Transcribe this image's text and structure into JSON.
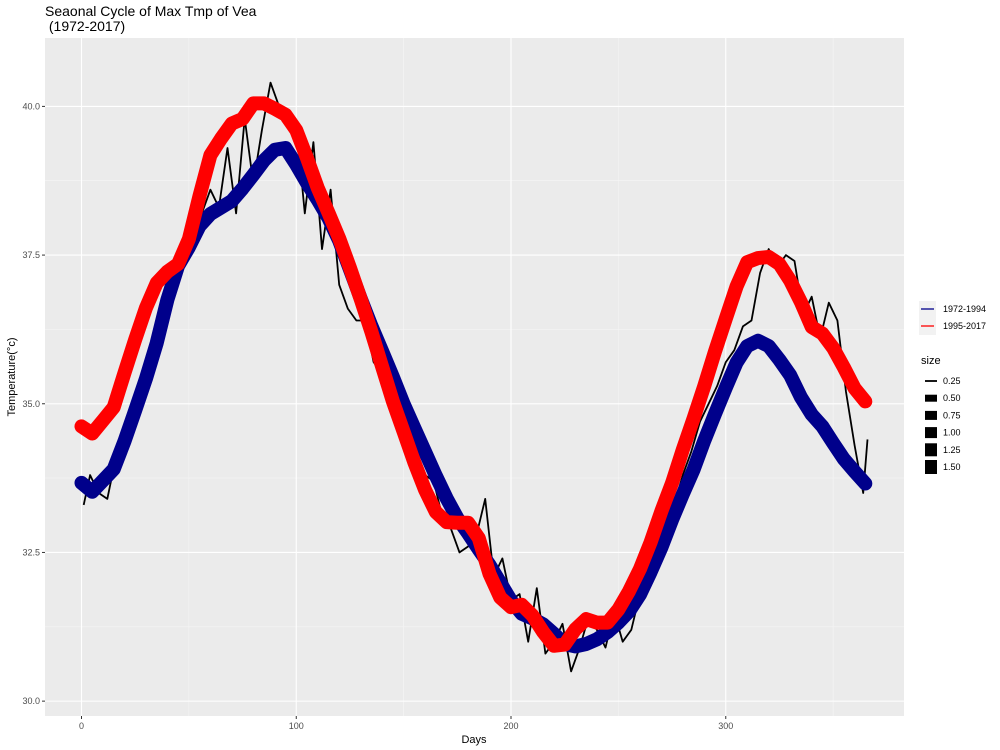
{
  "title_line1": "Seaonal Cycle of Max Tmp of Vea",
  "title_line2": " (1972-2017)",
  "chart_data": {
    "type": "line",
    "title": "Seaonal Cycle of Max Tmp of Vea\n (1972-2017)",
    "xlabel": "Days",
    "ylabel": "Temperature(°c)",
    "xlim": [
      -17,
      383
    ],
    "ylim": [
      29.75,
      41.15
    ],
    "x_ticks": [
      0,
      100,
      200,
      300
    ],
    "y_ticks": [
      30.0,
      32.5,
      35.0,
      37.5,
      40.0
    ],
    "y_tick_labels": [
      "30.0",
      "32.5",
      "35.0",
      "37.5",
      "40.0"
    ],
    "grid": true,
    "legend_placement": "right",
    "raw_daily": {
      "name": "",
      "color": "#000000",
      "x": [
        1,
        4,
        8,
        12,
        16,
        20,
        24,
        28,
        32,
        36,
        40,
        44,
        48,
        52,
        56,
        60,
        64,
        68,
        72,
        76,
        80,
        84,
        88,
        92,
        96,
        100,
        104,
        108,
        112,
        116,
        120,
        124,
        128,
        132,
        136,
        140,
        144,
        148,
        152,
        156,
        160,
        164,
        168,
        172,
        176,
        180,
        184,
        188,
        192,
        196,
        200,
        204,
        208,
        212,
        216,
        220,
        224,
        228,
        232,
        236,
        240,
        244,
        248,
        252,
        256,
        260,
        264,
        268,
        272,
        276,
        280,
        284,
        288,
        292,
        296,
        300,
        304,
        308,
        312,
        316,
        320,
        324,
        328,
        332,
        336,
        340,
        344,
        348,
        352,
        356,
        360,
        364,
        366
      ],
      "y": [
        33.3,
        33.8,
        33.5,
        33.4,
        34.1,
        34.3,
        34.9,
        35.3,
        35.8,
        36.2,
        36.7,
        37.0,
        37.5,
        38.0,
        38.2,
        38.6,
        38.3,
        39.3,
        38.2,
        39.8,
        38.7,
        39.6,
        40.4,
        40.0,
        39.7,
        39.7,
        38.2,
        39.4,
        37.6,
        38.6,
        37.0,
        36.6,
        36.4,
        36.4,
        35.7,
        35.5,
        35.4,
        34.9,
        34.6,
        34.2,
        33.8,
        33.7,
        33.1,
        32.9,
        32.5,
        32.6,
        32.8,
        33.4,
        32.1,
        32.4,
        31.7,
        31.8,
        31.0,
        31.9,
        30.8,
        31.0,
        31.3,
        30.5,
        30.9,
        31.4,
        31.2,
        30.9,
        31.5,
        31.0,
        31.2,
        31.8,
        32.2,
        32.6,
        32.9,
        33.3,
        33.8,
        34.2,
        34.7,
        35.0,
        35.3,
        35.7,
        35.9,
        36.3,
        36.4,
        37.2,
        37.6,
        37.3,
        37.5,
        37.4,
        36.5,
        36.8,
        36.1,
        36.7,
        36.4,
        35.2,
        34.3,
        33.5,
        34.4
      ]
    },
    "series": [
      {
        "name": "1972-1994",
        "color": "#00008b",
        "x": [
          0,
          5,
          10,
          15,
          20,
          25,
          30,
          35,
          40,
          45,
          50,
          55,
          60,
          65,
          70,
          75,
          80,
          85,
          90,
          95,
          100,
          105,
          110,
          115,
          120,
          125,
          130,
          135,
          140,
          145,
          150,
          155,
          160,
          165,
          170,
          175,
          180,
          185,
          190,
          195,
          200,
          205,
          210,
          215,
          220,
          225,
          230,
          235,
          240,
          245,
          250,
          255,
          260,
          265,
          270,
          275,
          280,
          285,
          290,
          295,
          300,
          305,
          310,
          315,
          320,
          325,
          330,
          335,
          340,
          345,
          350,
          355,
          360,
          365
        ],
        "values": [
          33.67,
          33.52,
          33.71,
          33.9,
          34.37,
          34.89,
          35.42,
          36.02,
          36.75,
          37.32,
          37.63,
          37.99,
          38.19,
          38.3,
          38.41,
          38.62,
          38.85,
          39.09,
          39.27,
          39.3,
          39.02,
          38.71,
          38.43,
          38.12,
          37.74,
          37.26,
          36.77,
          36.31,
          35.88,
          35.45,
          35.0,
          34.59,
          34.19,
          33.79,
          33.41,
          33.08,
          32.82,
          32.55,
          32.29,
          31.99,
          31.69,
          31.47,
          31.39,
          31.29,
          31.13,
          30.96,
          30.92,
          30.96,
          31.04,
          31.16,
          31.32,
          31.51,
          31.79,
          32.17,
          32.58,
          33.05,
          33.48,
          33.89,
          34.38,
          34.83,
          35.27,
          35.69,
          35.97,
          36.06,
          35.97,
          35.74,
          35.48,
          35.11,
          34.82,
          34.62,
          34.34,
          34.07,
          33.86,
          33.66
        ]
      },
      {
        "name": "1995-2017",
        "color": "#ff0000",
        "x": [
          0,
          5,
          10,
          15,
          20,
          25,
          30,
          35,
          40,
          45,
          50,
          55,
          60,
          65,
          70,
          75,
          80,
          85,
          90,
          95,
          100,
          105,
          110,
          115,
          120,
          125,
          130,
          135,
          140,
          145,
          150,
          155,
          160,
          165,
          170,
          175,
          180,
          185,
          190,
          195,
          200,
          205,
          210,
          215,
          220,
          225,
          230,
          235,
          240,
          245,
          250,
          255,
          260,
          265,
          270,
          275,
          280,
          285,
          290,
          295,
          300,
          305,
          310,
          315,
          320,
          325,
          330,
          335,
          340,
          345,
          350,
          355,
          360,
          365
        ],
        "values": [
          34.62,
          34.5,
          34.72,
          34.94,
          35.52,
          36.08,
          36.61,
          37.03,
          37.22,
          37.35,
          37.77,
          38.5,
          39.18,
          39.46,
          39.71,
          39.79,
          40.05,
          40.05,
          39.96,
          39.86,
          39.6,
          39.13,
          38.63,
          38.21,
          37.78,
          37.29,
          36.76,
          36.21,
          35.62,
          35.04,
          34.53,
          34.01,
          33.55,
          33.18,
          33.01,
          33.0,
          33.0,
          32.74,
          32.14,
          31.74,
          31.58,
          31.62,
          31.44,
          31.16,
          30.93,
          30.95,
          31.21,
          31.38,
          31.32,
          31.32,
          31.54,
          31.85,
          32.22,
          32.67,
          33.19,
          33.67,
          34.23,
          34.75,
          35.3,
          35.88,
          36.43,
          36.97,
          37.38,
          37.45,
          37.47,
          37.35,
          37.07,
          36.71,
          36.29,
          36.18,
          35.94,
          35.61,
          35.26,
          35.04
        ]
      }
    ],
    "legend_series": [
      {
        "label": "1972-1994",
        "color": "#00008b"
      },
      {
        "label": "1995-2017",
        "color": "#ff0000"
      }
    ],
    "legend_size_title": "size",
    "legend_size": [
      "0.25",
      "0.50",
      "0.75",
      "1.00",
      "1.25",
      "1.50"
    ]
  }
}
